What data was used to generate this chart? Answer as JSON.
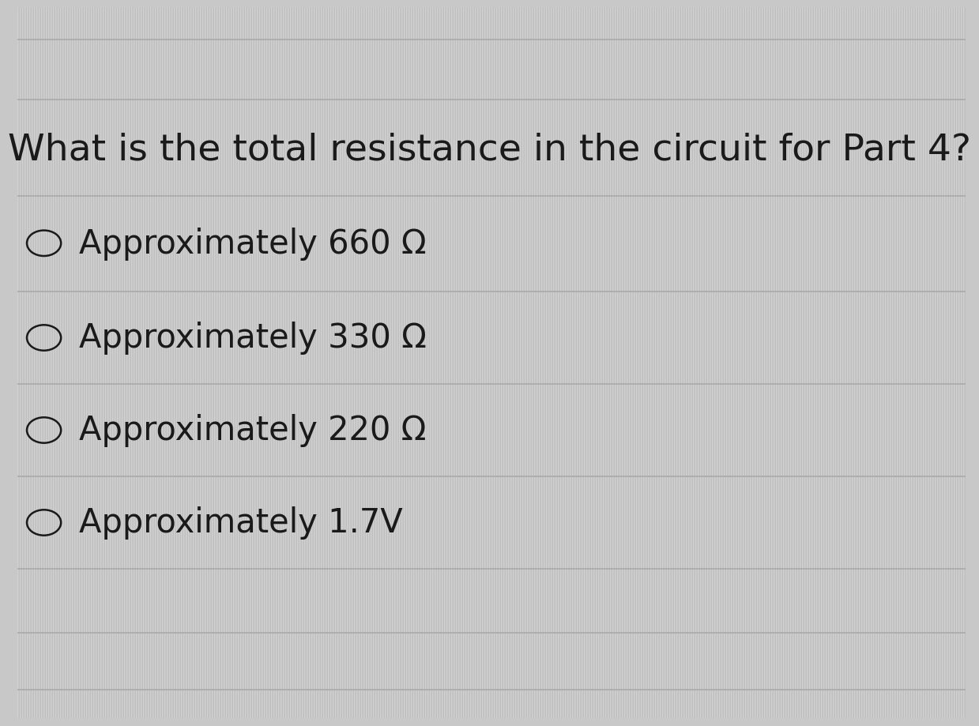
{
  "question": "What is the total resistance in the circuit for Part 4?",
  "options": [
    "Approximately 660 Ω",
    "Approximately 330 Ω",
    "Approximately 220 Ω",
    "Approximately 1.7V"
  ],
  "background_color": "#c8c8c8",
  "stripe_color_light": "#d0d0d0",
  "stripe_color_dark": "#c2c2c2",
  "line_color": "#aaaaaa",
  "text_color": "#1a1a1a",
  "question_fontsize": 34,
  "option_fontsize": 30,
  "fig_width": 12.0,
  "fig_height": 9.0
}
